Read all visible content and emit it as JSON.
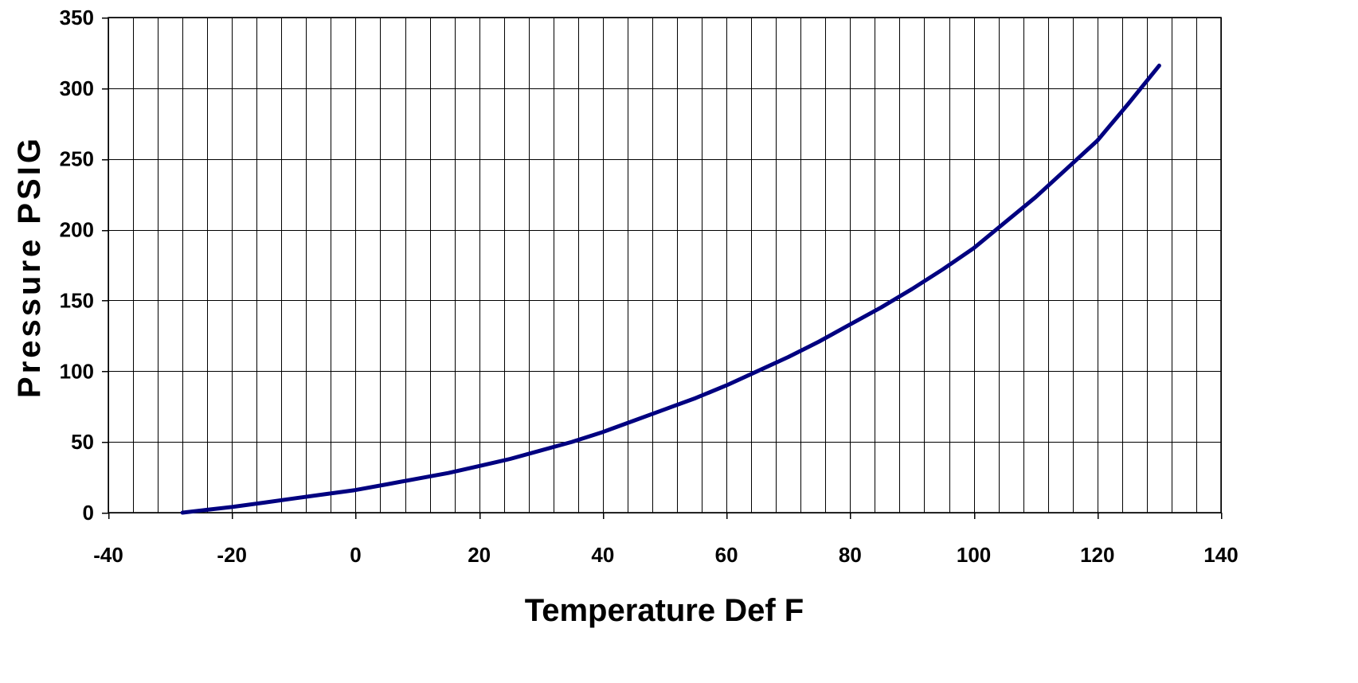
{
  "chart_data": {
    "type": "line",
    "title": "",
    "xlabel": "Temperature Def F",
    "ylabel": "Pressure PSIG",
    "xlim": [
      -40,
      140
    ],
    "ylim": [
      0,
      350
    ],
    "x_ticks": [
      -40,
      -20,
      0,
      20,
      40,
      60,
      80,
      100,
      120,
      140
    ],
    "y_ticks": [
      0,
      50,
      100,
      150,
      200,
      250,
      300,
      350
    ],
    "x_ticks_text": [
      "-40",
      "-20",
      "0",
      "20",
      "40",
      "60",
      "80",
      "100",
      "120",
      "140"
    ],
    "y_ticks_text": [
      "0",
      "50",
      "100",
      "150",
      "200",
      "250",
      "300",
      "350"
    ],
    "x_minor_step": 4,
    "grid": true,
    "legend": "none",
    "line_color": "#000080",
    "series": [
      {
        "x": [
          -28,
          -24,
          -20,
          -15,
          -10,
          -5,
          0,
          5,
          10,
          15,
          20,
          25,
          30,
          35,
          40,
          45,
          50,
          55,
          60,
          65,
          70,
          75,
          80,
          85,
          90,
          95,
          100,
          105,
          110,
          115,
          120,
          125,
          130
        ],
        "values": [
          0,
          2,
          4,
          7,
          10,
          13,
          16,
          20,
          24,
          28,
          33,
          38,
          44,
          50,
          57,
          65,
          73,
          81,
          90,
          100,
          110,
          121,
          133,
          145,
          158,
          172,
          187,
          205,
          223,
          243,
          263,
          289,
          316
        ]
      }
    ]
  }
}
